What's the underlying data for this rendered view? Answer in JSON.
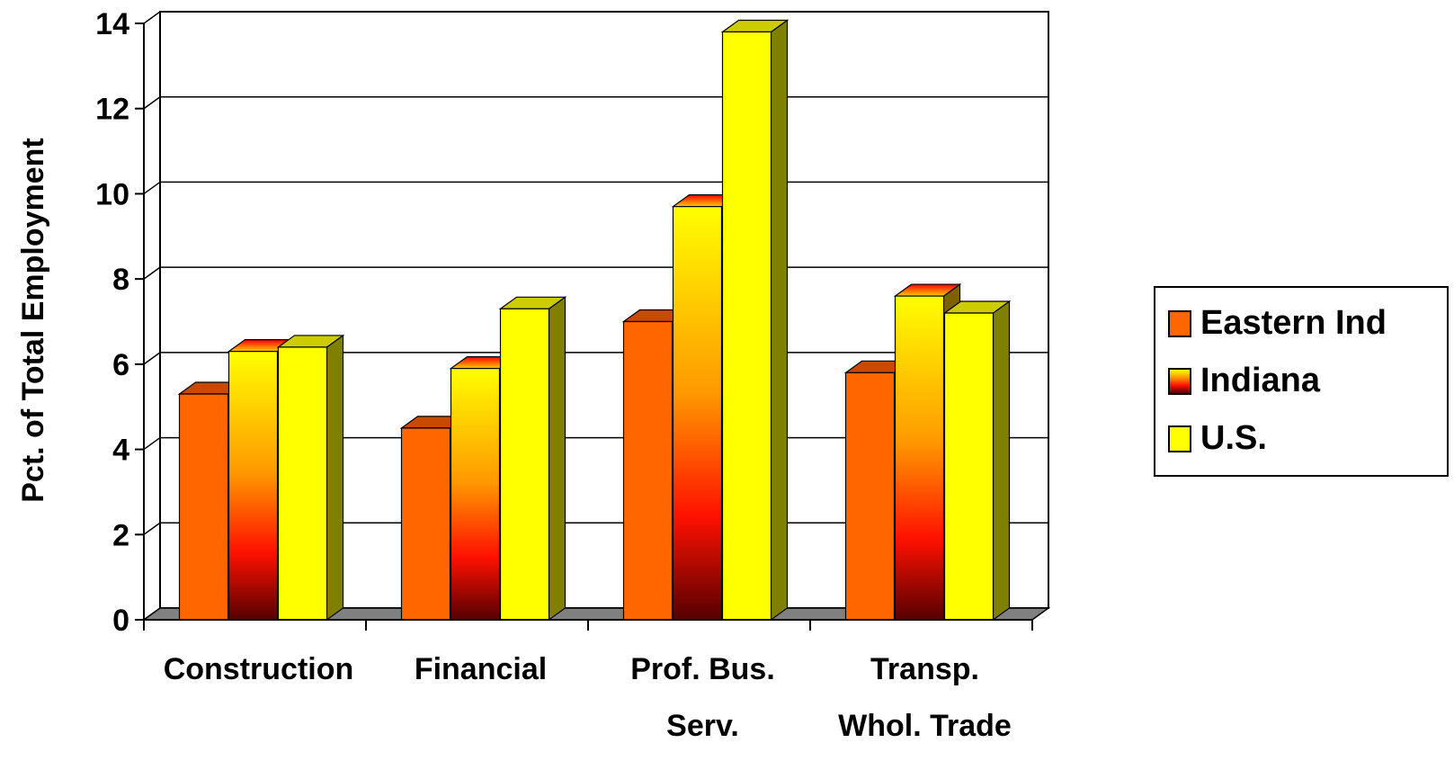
{
  "chart_data": {
    "type": "bar",
    "ylabel": "Pct. of Total Employment",
    "xlabel": "",
    "ylim": [
      0,
      14
    ],
    "yticks": [
      "0",
      "2",
      "4",
      "6",
      "8",
      "10",
      "12",
      "14"
    ],
    "grid": true,
    "legend_position": "right",
    "categories": [
      {
        "line1": "Construction",
        "line2": ""
      },
      {
        "line1": "Financial",
        "line2": ""
      },
      {
        "line1": "Prof. Bus.",
        "line2": "Serv."
      },
      {
        "line1": "Transp.",
        "line2": "Whol. Trade"
      }
    ],
    "series": [
      {
        "name": "Eastern Ind",
        "values": [
          5.3,
          4.5,
          7.0,
          5.8
        ],
        "color": "#FF6600"
      },
      {
        "name": "Indiana",
        "values": [
          6.3,
          5.9,
          9.7,
          7.6
        ],
        "color": "#FF3300"
      },
      {
        "name": "U.S.",
        "values": [
          6.4,
          7.3,
          13.8,
          7.2
        ],
        "color": "#FFFF00"
      }
    ]
  }
}
